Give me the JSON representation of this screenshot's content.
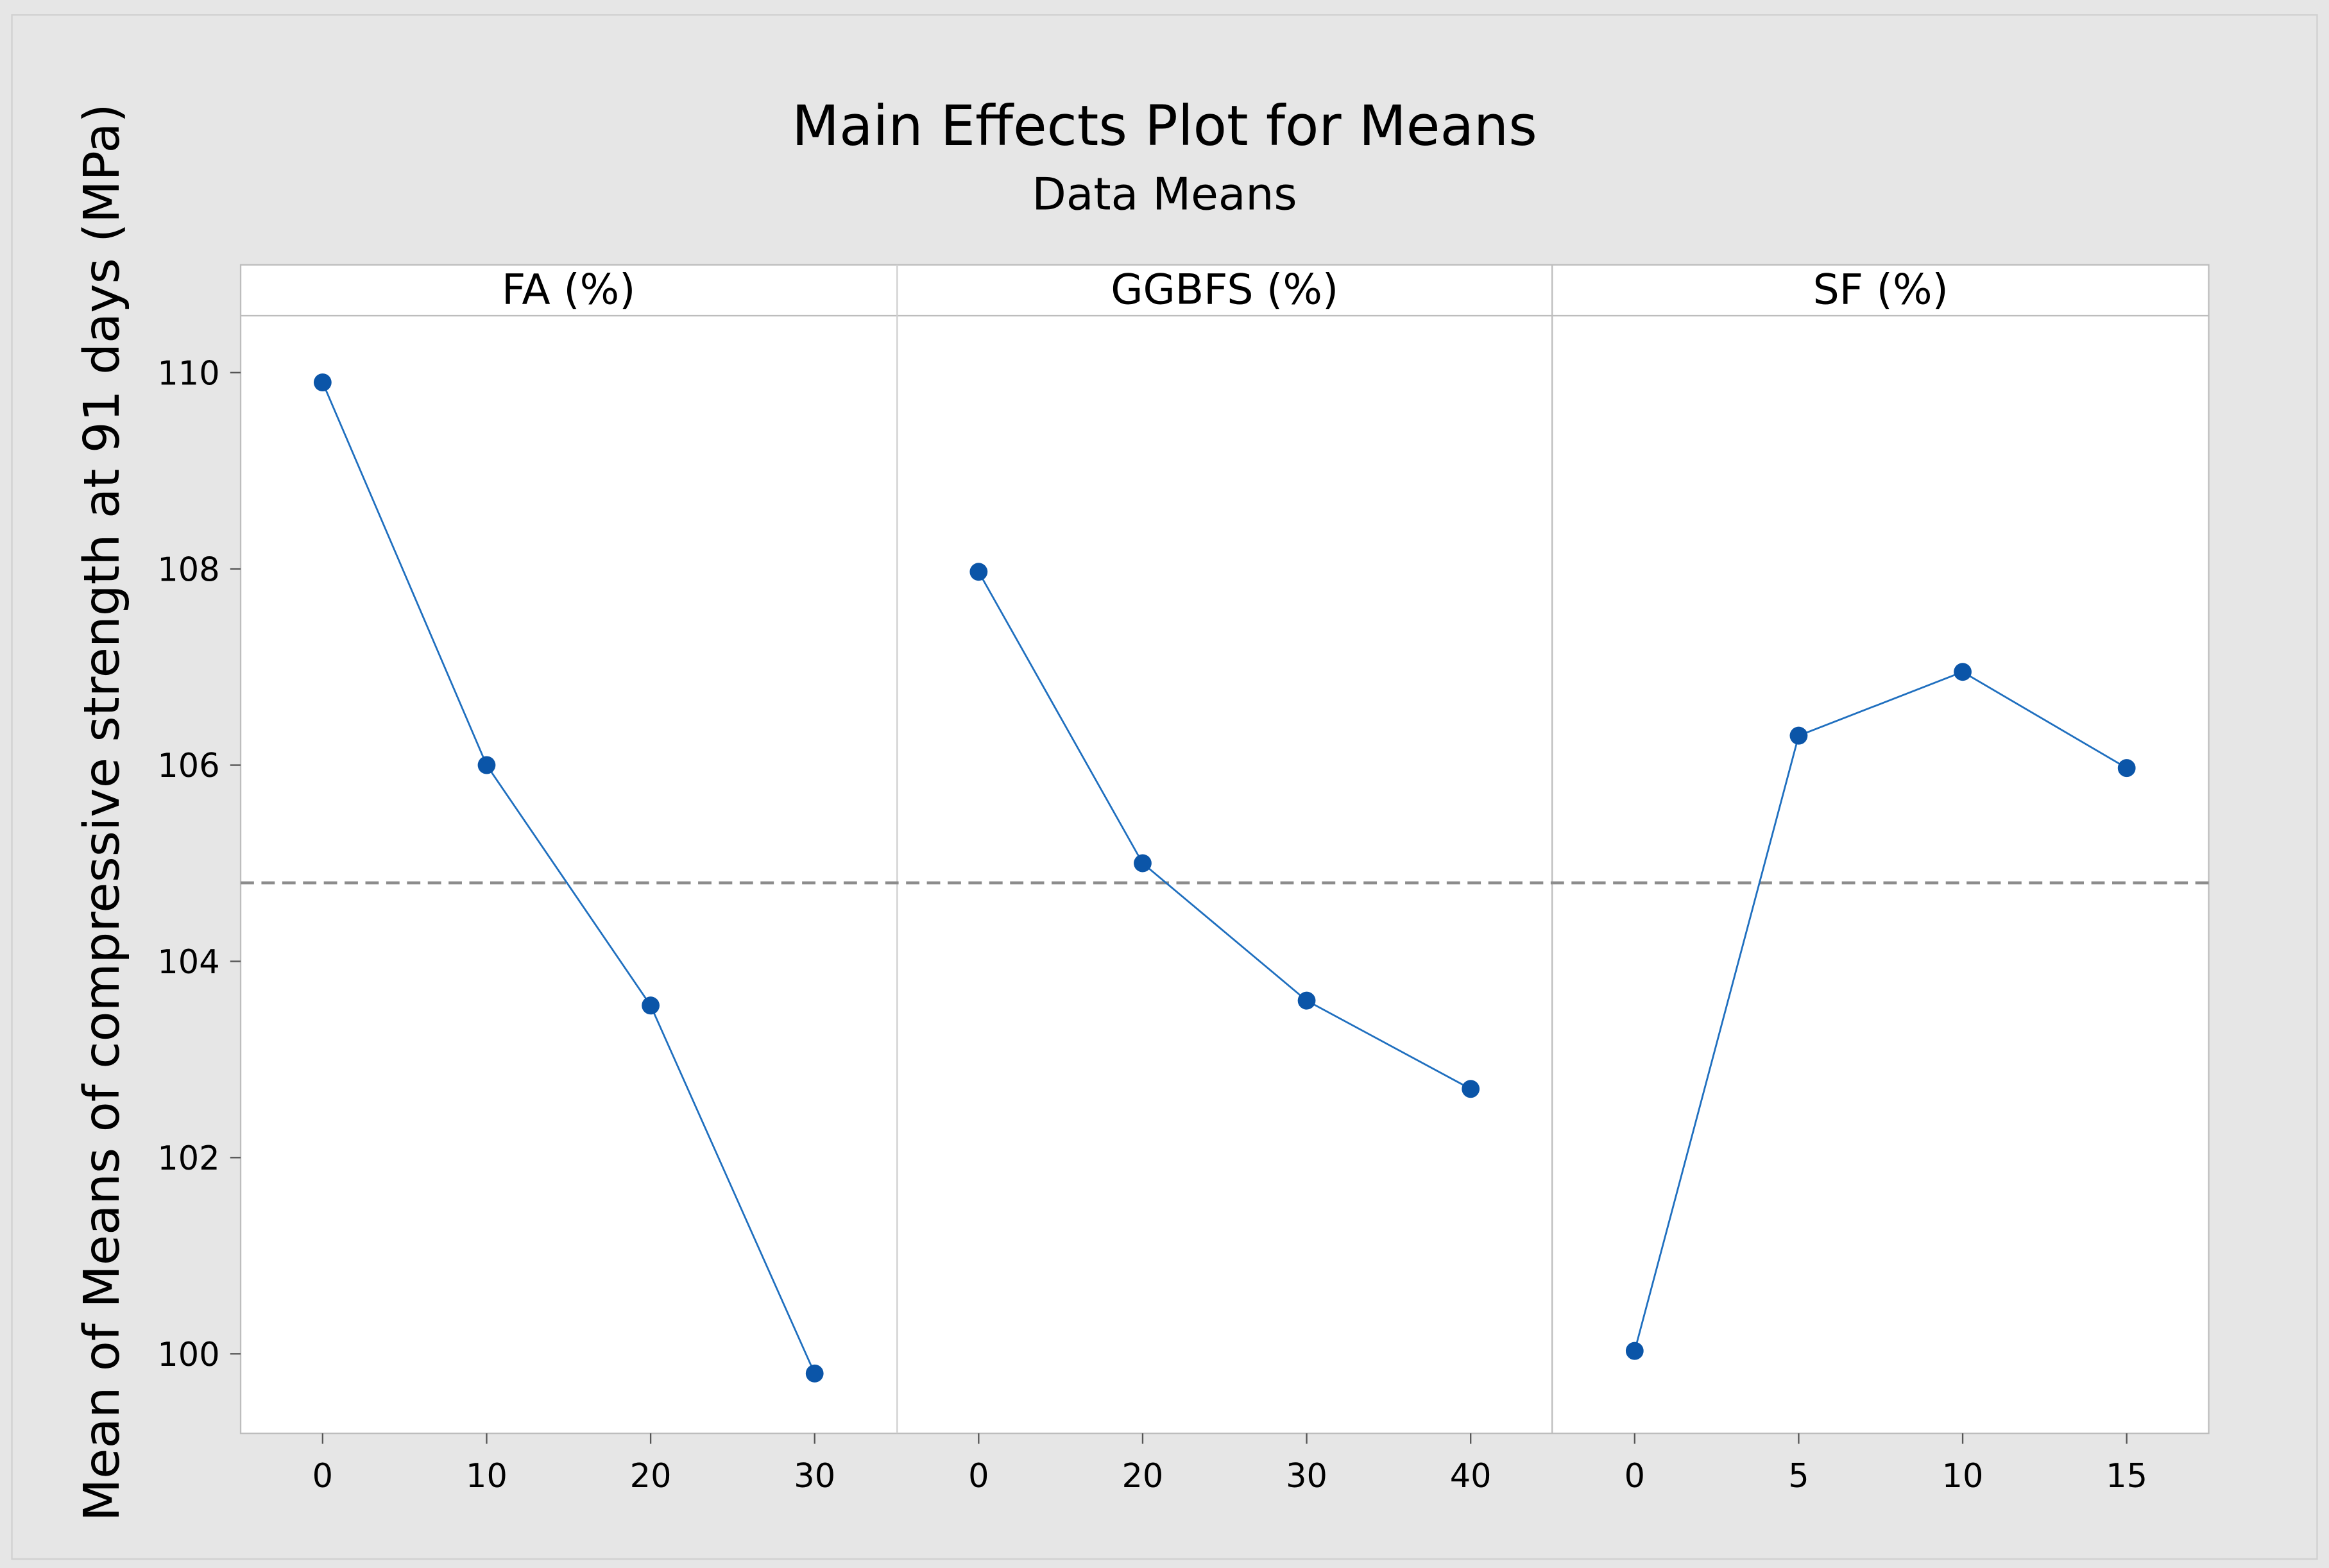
{
  "chart_data": {
    "type": "line",
    "title": "Main Effects Plot for Means",
    "subtitle": "Data Means",
    "y_label": "Mean of Means of compressive strength at 91 days (MPa)",
    "ylim": [
      99.19,
      110.58
    ],
    "yticks": [
      100,
      102,
      104,
      106,
      108,
      110
    ],
    "mean_line": 104.8,
    "color": "#1f6fbf",
    "marker_color": "#0b55a8",
    "panels": [
      {
        "title": "FA (%)",
        "categories": [
          "0",
          "10",
          "20",
          "30"
        ],
        "values": [
          109.9,
          106.0,
          103.55,
          99.8
        ]
      },
      {
        "title": "GGBFS (%)",
        "categories": [
          "0",
          "20",
          "30",
          "40"
        ],
        "values": [
          107.97,
          105.0,
          103.6,
          102.7
        ]
      },
      {
        "title": "SF (%)",
        "categories": [
          "0",
          "5",
          "10",
          "15"
        ],
        "values": [
          100.03,
          106.3,
          106.95,
          105.97
        ]
      }
    ]
  }
}
